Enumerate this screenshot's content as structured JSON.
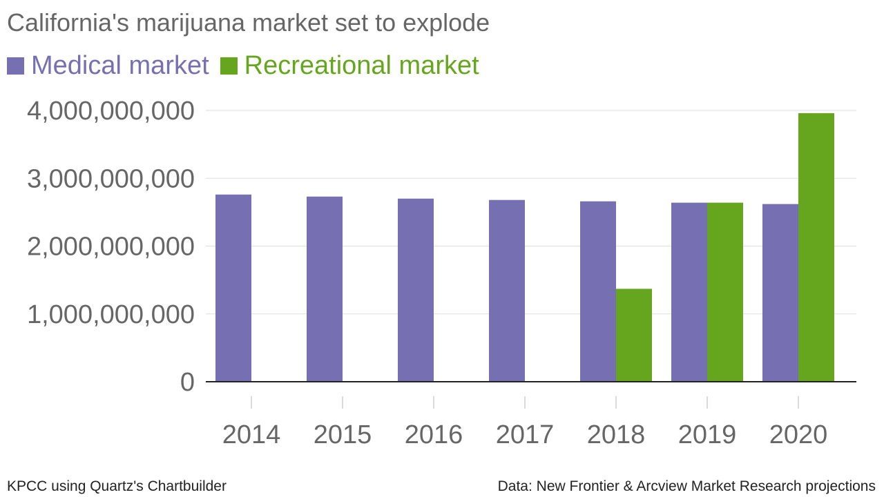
{
  "colors": {
    "medical": "#7670b3",
    "recreational": "#65a61e",
    "text": "#666666",
    "grid": "#dddddd",
    "axis": "#222222"
  },
  "footer": {
    "left": "KPCC using Quartz's Chartbuilder",
    "right": "Data: New Frontier & Arcview Market Research projections"
  },
  "chart_data": {
    "type": "bar",
    "title": "California's marijuana market set to explode",
    "legend_placement": "top-left",
    "grid": true,
    "categories": [
      "2014",
      "2015",
      "2016",
      "2017",
      "2018",
      "2019",
      "2020"
    ],
    "series": [
      {
        "name": "Medical market",
        "values": [
          2760000000,
          2730000000,
          2700000000,
          2680000000,
          2660000000,
          2640000000,
          2620000000
        ]
      },
      {
        "name": "Recreational market",
        "values": [
          0,
          0,
          0,
          0,
          1370000000,
          2640000000,
          3960000000
        ]
      }
    ],
    "ylim": [
      0,
      4000000000
    ],
    "yticks": [
      "0",
      "1,000,000,000",
      "2,000,000,000",
      "3,000,000,000",
      "4,000,000,000"
    ],
    "ytick_values": [
      0,
      1000000000,
      2000000000,
      3000000000,
      4000000000
    ]
  }
}
